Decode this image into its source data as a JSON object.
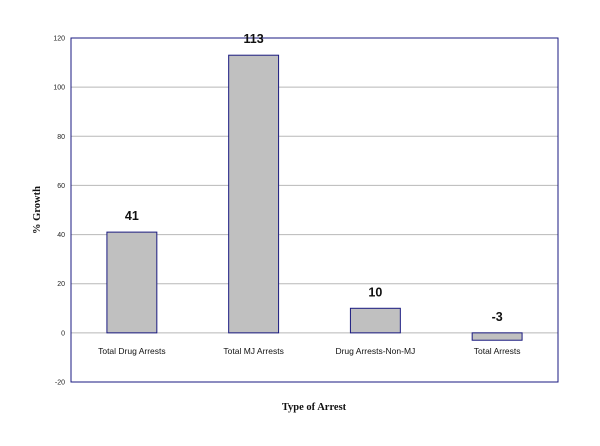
{
  "chart_data": {
    "type": "bar",
    "categories": [
      "Total Drug Arrests",
      "Total MJ Arrests",
      "Drug Arrests-Non-MJ",
      "Total Arrests"
    ],
    "values": [
      41,
      113,
      10,
      -3
    ],
    "data_labels": [
      "41",
      "113",
      "10",
      "-3"
    ],
    "title": "",
    "xlabel": "Type of Arrest",
    "ylabel": "% Growth",
    "ylim": [
      -20,
      120
    ],
    "yticks": [
      -20,
      0,
      20,
      40,
      60,
      80,
      100,
      120
    ],
    "grid": true,
    "legend": "none",
    "colors": {
      "bar_fill": "#c0c0c0",
      "bar_stroke": "#1a1a80",
      "plot_border": "#1a1a80",
      "gridline": "#b8b8b8"
    }
  }
}
